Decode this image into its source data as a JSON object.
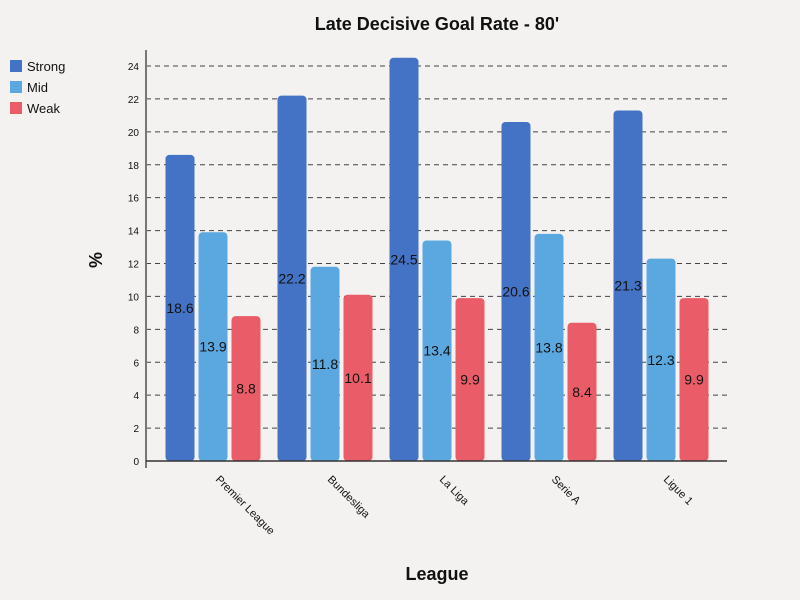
{
  "chart_data": {
    "type": "bar",
    "title": "Late Decisive Goal Rate - 80'",
    "xlabel": "League",
    "ylabel": "%",
    "categories": [
      "Premier League",
      "Bundesliga",
      "La Liga",
      "Serie A",
      "Ligue 1"
    ],
    "series": [
      {
        "name": "Strong",
        "color": "#4472c4",
        "values": [
          18.6,
          22.2,
          24.5,
          20.6,
          21.3
        ]
      },
      {
        "name": "Mid",
        "color": "#5ba8e0",
        "values": [
          13.9,
          11.8,
          13.4,
          13.8,
          12.3
        ]
      },
      {
        "name": "Weak",
        "color": "#e95c68",
        "values": [
          8.8,
          10.1,
          9.9,
          8.4,
          9.9
        ]
      }
    ],
    "ylim": [
      0,
      25
    ],
    "yticks": [
      0,
      2,
      4,
      6,
      8,
      10,
      12,
      14,
      16,
      18,
      20,
      22,
      24
    ],
    "grid": true,
    "legend_position": "top-left"
  }
}
